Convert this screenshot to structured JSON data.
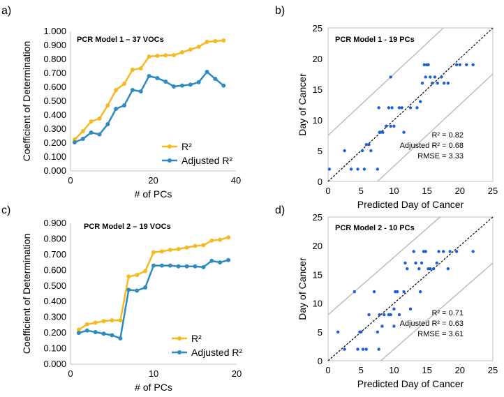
{
  "panels": [
    {
      "label": "a)"
    },
    {
      "label": "b)"
    },
    {
      "label": "c)"
    },
    {
      "label": "d)"
    }
  ],
  "chart_data": [
    {
      "type": "line",
      "panel": "a)",
      "title": "PCR Model 1 – 37 VOCs",
      "xlabel": "# of PCs",
      "ylabel": "Coefficient of Determination",
      "xlim": [
        0,
        40
      ],
      "ylim": [
        0,
        1
      ],
      "xticks": [
        0,
        20,
        40
      ],
      "yticks": [
        "0.000",
        "0.100",
        "0.200",
        "0.300",
        "0.400",
        "0.500",
        "0.600",
        "0.700",
        "0.800",
        "0.900",
        "1.000"
      ],
      "x": [
        1,
        3,
        5,
        7,
        9,
        11,
        13,
        15,
        17,
        19,
        21,
        23,
        25,
        27,
        29,
        31,
        33,
        35,
        37
      ],
      "series": [
        {
          "name": "R²",
          "color": "#F5B921",
          "values": [
            0.225,
            0.285,
            0.355,
            0.375,
            0.47,
            0.58,
            0.625,
            0.725,
            0.735,
            0.82,
            0.825,
            0.828,
            0.83,
            0.85,
            0.87,
            0.89,
            0.925,
            0.93,
            0.935
          ]
        },
        {
          "name": "Adjusted R²",
          "color": "#2E8BC0",
          "values": [
            0.205,
            0.23,
            0.275,
            0.262,
            0.335,
            0.445,
            0.47,
            0.58,
            0.57,
            0.68,
            0.665,
            0.64,
            0.605,
            0.612,
            0.618,
            0.636,
            0.71,
            0.66,
            0.612
          ]
        }
      ],
      "legend_position": "bottom-right"
    },
    {
      "type": "scatter",
      "panel": "b)",
      "title": "PCR Model 1 - 19 PCs",
      "xlabel": "Predicted Day of Cancer",
      "ylabel": "Day of Cancer",
      "xlim": [
        0,
        25
      ],
      "ylim": [
        0,
        25
      ],
      "ticks": [
        0,
        5,
        10,
        15,
        20,
        25
      ],
      "stats": {
        "r2": "R² = 0.82",
        "adj_r2": "Adjusted R² = 0.68",
        "rmse": "RMSE = 3.33"
      },
      "point_color": "#1F5FD6",
      "points": [
        [
          0.2,
          2
        ],
        [
          2.5,
          5
        ],
        [
          3.5,
          2
        ],
        [
          4.5,
          2
        ],
        [
          5.2,
          5
        ],
        [
          5.5,
          2
        ],
        [
          5.8,
          6
        ],
        [
          6.2,
          6
        ],
        [
          6.5,
          5
        ],
        [
          7.5,
          2
        ],
        [
          7.7,
          12
        ],
        [
          7.8,
          8
        ],
        [
          8.0,
          8
        ],
        [
          8.3,
          8
        ],
        [
          8.8,
          9
        ],
        [
          9.2,
          12
        ],
        [
          9.5,
          9
        ],
        [
          9.7,
          12
        ],
        [
          9.5,
          17
        ],
        [
          10,
          9
        ],
        [
          10.8,
          12
        ],
        [
          11.2,
          12
        ],
        [
          11.5,
          8
        ],
        [
          12.5,
          12
        ],
        [
          13.5,
          12
        ],
        [
          14,
          13
        ],
        [
          14.3,
          16
        ],
        [
          14.6,
          19
        ],
        [
          14.8,
          17
        ],
        [
          15,
          19
        ],
        [
          15.2,
          19
        ],
        [
          15.5,
          17
        ],
        [
          15.8,
          16
        ],
        [
          16.2,
          17
        ],
        [
          16.6,
          16
        ],
        [
          17.2,
          17
        ],
        [
          17.6,
          16
        ],
        [
          18.2,
          16
        ],
        [
          19.5,
          19
        ],
        [
          20,
          19
        ],
        [
          21,
          19
        ],
        [
          22,
          19
        ]
      ],
      "confidence_lines": {
        "identity": [
          [
            0,
            0
          ],
          [
            25,
            25
          ]
        ],
        "upper": [
          [
            0,
            7.5
          ],
          [
            17.5,
            25
          ]
        ],
        "lower": [
          [
            7.5,
            0
          ],
          [
            25,
            17.5
          ]
        ]
      }
    },
    {
      "type": "line",
      "panel": "c)",
      "title": "PCR Model 2 – 19 VOCs",
      "xlabel": "# of PCs",
      "ylabel": "Coefficient of Determination",
      "xlim": [
        0,
        20
      ],
      "ylim": [
        0,
        0.9
      ],
      "xticks": [
        0,
        10,
        20
      ],
      "yticks": [
        "0.000",
        "0.100",
        "0.200",
        "0.300",
        "0.400",
        "0.500",
        "0.600",
        "0.700",
        "0.800",
        "0.900"
      ],
      "x": [
        1,
        2,
        3,
        4,
        5,
        6,
        7,
        8,
        9,
        10,
        11,
        12,
        13,
        14,
        15,
        16,
        17,
        18,
        19
      ],
      "series": [
        {
          "name": "R²",
          "color": "#F5B921",
          "values": [
            0.22,
            0.255,
            0.265,
            0.275,
            0.28,
            0.28,
            0.56,
            0.57,
            0.595,
            0.715,
            0.72,
            0.73,
            0.735,
            0.745,
            0.755,
            0.76,
            0.79,
            0.795,
            0.81
          ]
        },
        {
          "name": "Adjusted R²",
          "color": "#2E8BC0",
          "values": [
            0.2,
            0.215,
            0.205,
            0.195,
            0.185,
            0.165,
            0.475,
            0.47,
            0.49,
            0.63,
            0.63,
            0.63,
            0.625,
            0.625,
            0.625,
            0.62,
            0.66,
            0.65,
            0.665
          ]
        }
      ],
      "legend_position": "bottom-right"
    },
    {
      "type": "scatter",
      "panel": "d)",
      "title": "PCR Model 2 - 10 PCs",
      "xlabel": "Predicted Day of Cancer",
      "ylabel": "Day of Cancer",
      "xlim": [
        0,
        25
      ],
      "ylim": [
        0,
        25
      ],
      "ticks": [
        0,
        5,
        10,
        15,
        20,
        25
      ],
      "stats": {
        "r2": "R² = 0.71",
        "adj_r2": "Adjusted R² = 0.63",
        "rmse": "RMSE = 3.61"
      },
      "point_color": "#1F5FD6",
      "points": [
        [
          1.5,
          5
        ],
        [
          2.5,
          2
        ],
        [
          4,
          12
        ],
        [
          4.5,
          2
        ],
        [
          4.8,
          5
        ],
        [
          5,
          5
        ],
        [
          5.3,
          2
        ],
        [
          5.8,
          2
        ],
        [
          6.2,
          8
        ],
        [
          7,
          12
        ],
        [
          7.5,
          5
        ],
        [
          7.7,
          2
        ],
        [
          7.8,
          8
        ],
        [
          8.2,
          6
        ],
        [
          8.5,
          8
        ],
        [
          9.2,
          8
        ],
        [
          9.5,
          8
        ],
        [
          10,
          9
        ],
        [
          10,
          6
        ],
        [
          10.2,
          12
        ],
        [
          10.5,
          12
        ],
        [
          10.8,
          8
        ],
        [
          11.5,
          12
        ],
        [
          11.7,
          17
        ],
        [
          12,
          16
        ],
        [
          12.5,
          9
        ],
        [
          13,
          19
        ],
        [
          13.3,
          17
        ],
        [
          13.8,
          16
        ],
        [
          14,
          12
        ],
        [
          14.2,
          17
        ],
        [
          14.5,
          19
        ],
        [
          14.8,
          19
        ],
        [
          15.2,
          16
        ],
        [
          15.5,
          16
        ],
        [
          16,
          16
        ],
        [
          16.5,
          17
        ],
        [
          16.8,
          19
        ],
        [
          17.5,
          19
        ],
        [
          18.2,
          16
        ],
        [
          18.5,
          19
        ],
        [
          19.5,
          19
        ],
        [
          22,
          19
        ]
      ],
      "confidence_lines": {
        "identity": [
          [
            0,
            0
          ],
          [
            25,
            25
          ]
        ],
        "upper": [
          [
            0,
            8
          ],
          [
            17,
            25
          ]
        ],
        "lower": [
          [
            8,
            0
          ],
          [
            25,
            17
          ]
        ]
      }
    }
  ]
}
